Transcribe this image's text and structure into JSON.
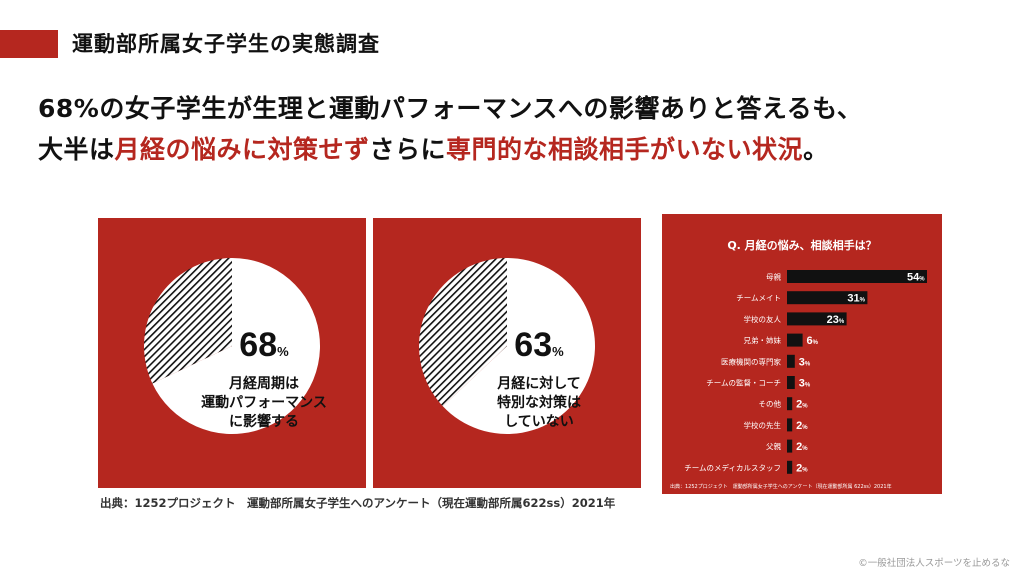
{
  "header": {
    "title": "運動部所属女子学生の実態調査"
  },
  "headline": {
    "line1": "68%の女子学生が生理と運動パフォーマンスへの影響ありと答えるも、",
    "line2_parts": [
      {
        "text": "大半は",
        "highlight": false
      },
      {
        "text": "月経の悩みに対策せず",
        "highlight": true
      },
      {
        "text": "さらに",
        "highlight": false
      },
      {
        "text": "専門的な相談相手がいない状況",
        "highlight": true
      },
      {
        "text": "。",
        "highlight": false
      }
    ]
  },
  "colors": {
    "accent": "#b5271f",
    "bar": "#111111",
    "panel_text": "#ffffff"
  },
  "chart_data": [
    {
      "type": "pie",
      "slices": [
        {
          "value": 68,
          "style": "white",
          "number": "68",
          "unit": "%"
        },
        {
          "value": 32,
          "style": "hatched"
        }
      ],
      "label_lines": [
        "月経周期は",
        "運動パフォーマンス",
        "に影響する"
      ]
    },
    {
      "type": "pie",
      "slices": [
        {
          "value": 63,
          "style": "white",
          "number": "63",
          "unit": "%"
        },
        {
          "value": 37,
          "style": "hatched"
        }
      ],
      "label_lines": [
        "月経に対して",
        "特別な対策は",
        "していない"
      ]
    },
    {
      "type": "bar",
      "orientation": "horizontal",
      "title": "Q. 月経の悩み、相談相手は？",
      "unit": "%",
      "categories": [
        "母親",
        "チームメイト",
        "学校の友人",
        "兄弟・姉妹",
        "医療機関の専門家",
        "チームの監督・コーチ",
        "その他",
        "学校の先生",
        "父親",
        "チームのメディカルスタッフ"
      ],
      "values": [
        54,
        31,
        23,
        6,
        3,
        3,
        2,
        2,
        2,
        2
      ],
      "xlim": [
        0,
        54
      ],
      "source": "出典：1252プロジェクト　運動部所属女子学生へのアンケート（現在運動部所属 622ss）2021年"
    }
  ],
  "source_note": "出典：1252プロジェクト　運動部所属女子学生へのアンケート（現在運動部所属622ss）2021年",
  "copyright": "©一般社団法人スポーツを止めるな"
}
